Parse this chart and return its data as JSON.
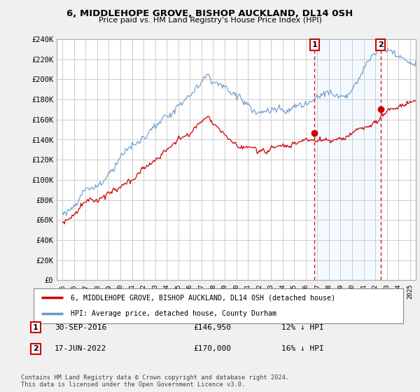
{
  "title": "6, MIDDLEHOPE GROVE, BISHOP AUCKLAND, DL14 0SH",
  "subtitle": "Price paid vs. HM Land Registry's House Price Index (HPI)",
  "ylabel_ticks": [
    "£0",
    "£20K",
    "£40K",
    "£60K",
    "£80K",
    "£100K",
    "£120K",
    "£140K",
    "£160K",
    "£180K",
    "£200K",
    "£220K",
    "£240K"
  ],
  "ytick_values": [
    0,
    20000,
    40000,
    60000,
    80000,
    100000,
    120000,
    140000,
    160000,
    180000,
    200000,
    220000,
    240000
  ],
  "ylim": [
    0,
    240000
  ],
  "xlim_start": 1994.5,
  "xlim_end": 2025.5,
  "xticks": [
    1995,
    1996,
    1997,
    1998,
    1999,
    2000,
    2001,
    2002,
    2003,
    2004,
    2005,
    2006,
    2007,
    2008,
    2009,
    2010,
    2011,
    2012,
    2013,
    2014,
    2015,
    2016,
    2017,
    2018,
    2019,
    2020,
    2021,
    2022,
    2023,
    2024,
    2025
  ],
  "legend_line1": "6, MIDDLEHOPE GROVE, BISHOP AUCKLAND, DL14 0SH (detached house)",
  "legend_line2": "HPI: Average price, detached house, County Durham",
  "line1_color": "#cc0000",
  "line2_color": "#6699cc",
  "sale1_x": 2016.75,
  "sale1_y": 146950,
  "sale2_x": 2022.46,
  "sale2_y": 170000,
  "sale1_date": "30-SEP-2016",
  "sale1_price": "£146,950",
  "sale1_hpi": "12% ↓ HPI",
  "sale2_date": "17-JUN-2022",
  "sale2_price": "£170,000",
  "sale2_hpi": "16% ↓ HPI",
  "footnote": "Contains HM Land Registry data © Crown copyright and database right 2024.\nThis data is licensed under the Open Government Licence v3.0.",
  "bg_color": "#f0f0f0",
  "plot_bg_color": "#ffffff",
  "shade_color": "#ddeeff",
  "grid_color": "#cccccc",
  "vline_color": "#dd0000"
}
